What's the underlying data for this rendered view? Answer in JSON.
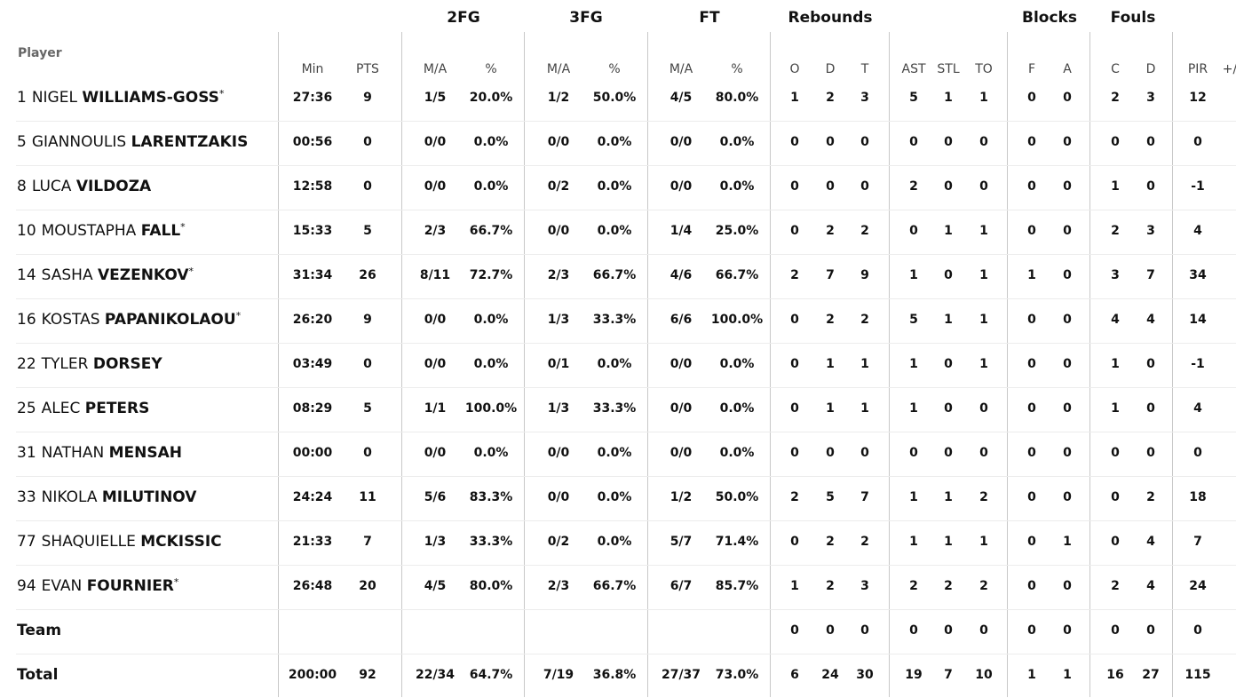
{
  "header": {
    "player_label": "Player",
    "groups": [
      "2FG",
      "3FG",
      "FT",
      "Rebounds",
      "Blocks",
      "Fouls"
    ],
    "columns": [
      "Min",
      "PTS",
      "M/A",
      "%",
      "M/A",
      "%",
      "M/A",
      "%",
      "O",
      "D",
      "T",
      "AST",
      "STL",
      "TO",
      "F",
      "A",
      "C",
      "D",
      "PIR",
      "+/"
    ]
  },
  "rows": [
    {
      "no": "1",
      "first": "NIGEL",
      "last": "WILLIAMS-GOSS",
      "starter": true,
      "stats": [
        "27:36",
        "9",
        "1/5",
        "20.0%",
        "1/2",
        "50.0%",
        "4/5",
        "80.0%",
        "1",
        "2",
        "3",
        "5",
        "1",
        "1",
        "0",
        "0",
        "2",
        "3",
        "12",
        ""
      ]
    },
    {
      "no": "5",
      "first": "GIANNOULIS",
      "last": "LARENTZAKIS",
      "starter": false,
      "stats": [
        "00:56",
        "0",
        "0/0",
        "0.0%",
        "0/0",
        "0.0%",
        "0/0",
        "0.0%",
        "0",
        "0",
        "0",
        "0",
        "0",
        "0",
        "0",
        "0",
        "0",
        "0",
        "0",
        ""
      ]
    },
    {
      "no": "8",
      "first": "LUCA",
      "last": "VILDOZA",
      "starter": false,
      "stats": [
        "12:58",
        "0",
        "0/0",
        "0.0%",
        "0/2",
        "0.0%",
        "0/0",
        "0.0%",
        "0",
        "0",
        "0",
        "2",
        "0",
        "0",
        "0",
        "0",
        "1",
        "0",
        "-1",
        ""
      ]
    },
    {
      "no": "10",
      "first": "MOUSTAPHA",
      "last": "FALL",
      "starter": true,
      "stats": [
        "15:33",
        "5",
        "2/3",
        "66.7%",
        "0/0",
        "0.0%",
        "1/4",
        "25.0%",
        "0",
        "2",
        "2",
        "0",
        "1",
        "1",
        "0",
        "0",
        "2",
        "3",
        "4",
        ""
      ]
    },
    {
      "no": "14",
      "first": "SASHA",
      "last": "VEZENKOV",
      "starter": true,
      "stats": [
        "31:34",
        "26",
        "8/11",
        "72.7%",
        "2/3",
        "66.7%",
        "4/6",
        "66.7%",
        "2",
        "7",
        "9",
        "1",
        "0",
        "1",
        "1",
        "0",
        "3",
        "7",
        "34",
        ""
      ]
    },
    {
      "no": "16",
      "first": "KOSTAS",
      "last": "PAPANIKOLAOU",
      "starter": true,
      "stats": [
        "26:20",
        "9",
        "0/0",
        "0.0%",
        "1/3",
        "33.3%",
        "6/6",
        "100.0%",
        "0",
        "2",
        "2",
        "5",
        "1",
        "1",
        "0",
        "0",
        "4",
        "4",
        "14",
        ""
      ]
    },
    {
      "no": "22",
      "first": "TYLER",
      "last": "DORSEY",
      "starter": false,
      "stats": [
        "03:49",
        "0",
        "0/0",
        "0.0%",
        "0/1",
        "0.0%",
        "0/0",
        "0.0%",
        "0",
        "1",
        "1",
        "1",
        "0",
        "1",
        "0",
        "0",
        "1",
        "0",
        "-1",
        ""
      ]
    },
    {
      "no": "25",
      "first": "ALEC",
      "last": "PETERS",
      "starter": false,
      "stats": [
        "08:29",
        "5",
        "1/1",
        "100.0%",
        "1/3",
        "33.3%",
        "0/0",
        "0.0%",
        "0",
        "1",
        "1",
        "1",
        "0",
        "0",
        "0",
        "0",
        "1",
        "0",
        "4",
        ""
      ]
    },
    {
      "no": "31",
      "first": "NATHAN",
      "last": "MENSAH",
      "starter": false,
      "stats": [
        "00:00",
        "0",
        "0/0",
        "0.0%",
        "0/0",
        "0.0%",
        "0/0",
        "0.0%",
        "0",
        "0",
        "0",
        "0",
        "0",
        "0",
        "0",
        "0",
        "0",
        "0",
        "0",
        ""
      ]
    },
    {
      "no": "33",
      "first": "NIKOLA",
      "last": "MILUTINOV",
      "starter": false,
      "stats": [
        "24:24",
        "11",
        "5/6",
        "83.3%",
        "0/0",
        "0.0%",
        "1/2",
        "50.0%",
        "2",
        "5",
        "7",
        "1",
        "1",
        "2",
        "0",
        "0",
        "0",
        "2",
        "18",
        ""
      ]
    },
    {
      "no": "77",
      "first": "SHAQUIELLE",
      "last": "MCKISSIC",
      "starter": false,
      "stats": [
        "21:33",
        "7",
        "1/3",
        "33.3%",
        "0/2",
        "0.0%",
        "5/7",
        "71.4%",
        "0",
        "2",
        "2",
        "1",
        "1",
        "1",
        "0",
        "1",
        "0",
        "4",
        "7",
        ""
      ]
    },
    {
      "no": "94",
      "first": "EVAN",
      "last": "FOURNIER",
      "starter": true,
      "stats": [
        "26:48",
        "20",
        "4/5",
        "80.0%",
        "2/3",
        "66.7%",
        "6/7",
        "85.7%",
        "1",
        "2",
        "3",
        "2",
        "2",
        "2",
        "0",
        "0",
        "2",
        "4",
        "24",
        ""
      ]
    }
  ],
  "team": {
    "label": "Team",
    "stats": [
      "",
      "",
      "",
      "",
      "",
      "",
      "",
      "",
      "0",
      "0",
      "0",
      "0",
      "0",
      "0",
      "0",
      "0",
      "0",
      "0",
      "0",
      ""
    ]
  },
  "total": {
    "label": "Total",
    "stats": [
      "200:00",
      "92",
      "22/34",
      "64.7%",
      "7/19",
      "36.8%",
      "27/37",
      "73.0%",
      "6",
      "24",
      "30",
      "19",
      "7",
      "10",
      "1",
      "1",
      "16",
      "27",
      "115",
      ""
    ]
  },
  "starter_mark": "*"
}
